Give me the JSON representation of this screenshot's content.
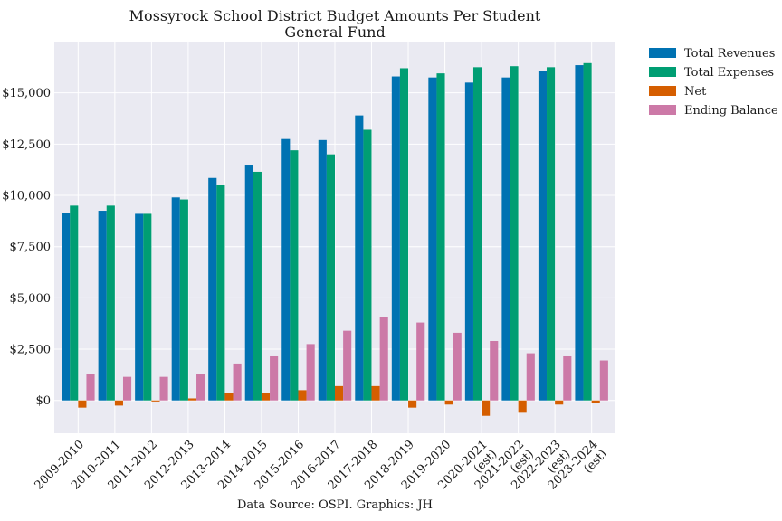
{
  "chart_data": {
    "type": "bar",
    "title": "Mossyrock School District Budget Amounts Per Student",
    "subtitle": "General Fund",
    "xlabel": "",
    "ylabel": "",
    "source_note": "Data Source: OSPI. Graphics: JH",
    "ylim": [
      -1600,
      17500
    ],
    "yticks": [
      0,
      2500,
      5000,
      7500,
      10000,
      12500,
      15000
    ],
    "ytick_labels": [
      "$0",
      "$2,500",
      "$5,000",
      "$7,500",
      "$10,000",
      "$12,500",
      "$15,000"
    ],
    "grid": true,
    "legend_position": "outside-top-right",
    "categories": [
      [
        "2009-2010"
      ],
      [
        "2010-2011"
      ],
      [
        "2011-2012"
      ],
      [
        "2012-2013"
      ],
      [
        "2013-2014"
      ],
      [
        "2014-2015"
      ],
      [
        "2015-2016"
      ],
      [
        "2016-2017"
      ],
      [
        "2017-2018"
      ],
      [
        "2018-2019"
      ],
      [
        "2019-2020"
      ],
      [
        "2020-2021",
        "(est)"
      ],
      [
        "2021-2022",
        "(est)"
      ],
      [
        "2022-2023",
        "(est)"
      ],
      [
        "2023-2024",
        "(est)"
      ]
    ],
    "series": [
      {
        "name": "Total Revenues",
        "color": "#0072b2",
        "values": [
          9150,
          9250,
          9100,
          9900,
          10850,
          11500,
          12750,
          12700,
          13900,
          15800,
          15750,
          15500,
          15750,
          16050,
          16350
        ]
      },
      {
        "name": "Total Expenses",
        "color": "#009e73",
        "values": [
          9500,
          9500,
          9100,
          9800,
          10500,
          11150,
          12200,
          12000,
          13200,
          16200,
          15950,
          16250,
          16300,
          16250,
          16450
        ]
      },
      {
        "name": "Net",
        "color": "#d55e00",
        "values": [
          -350,
          -250,
          -50,
          100,
          350,
          350,
          500,
          700,
          700,
          -350,
          -200,
          -750,
          -600,
          -200,
          -100
        ]
      },
      {
        "name": "Ending Balance",
        "color": "#cc79a7",
        "values": [
          1300,
          1150,
          1150,
          1300,
          1800,
          2150,
          2750,
          3400,
          4050,
          3800,
          3300,
          2900,
          2300,
          2150,
          1950
        ]
      }
    ]
  }
}
